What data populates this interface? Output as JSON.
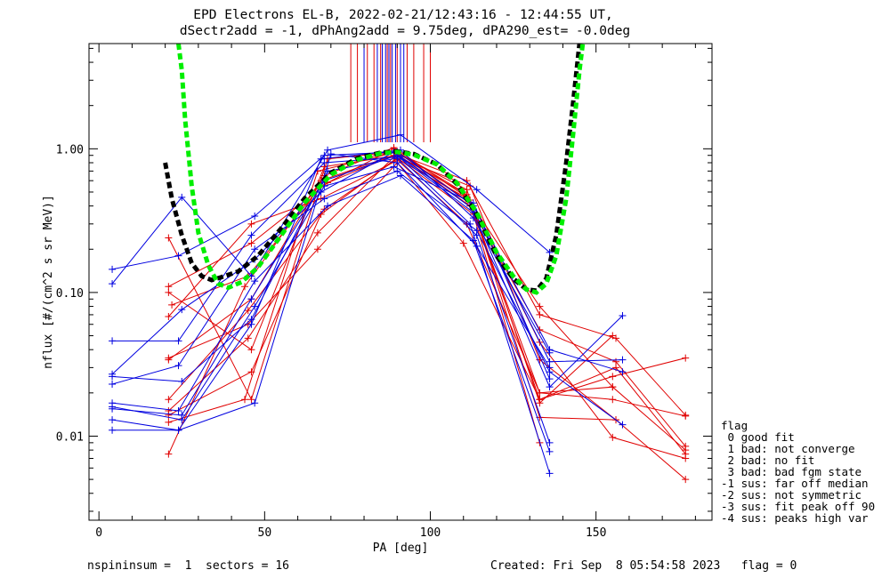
{
  "title_line1": "EPD Electrons EL-B, 2022-02-21/12:43:16 - 12:44:55 UT,",
  "title_line2": "dSectr2add = -1, dPhAng2add = 9.75deg, dPA290_est=  -0.0deg",
  "footer_left": "nspininsum =  1  sectors = 16",
  "footer_right": "Created: Fri Sep  8 05:54:58 2023   flag = 0",
  "legend": {
    "title": "flag",
    "items": [
      " 0 good fit",
      " 1 bad: not converge",
      " 2 bad: no fit",
      " 3 bad: bad fgm state",
      "-1 sus: far off median",
      "-2 sus: not symmetric",
      "-3 sus: fit peak off 90",
      "-4 sus: peaks high var"
    ]
  },
  "colors": {
    "red": "#e00000",
    "blue": "#0000e0",
    "green": "#00ee00",
    "black": "#000000"
  },
  "chart_data": {
    "type": "line",
    "xlabel": "PA [deg]",
    "ylabel": "nflux [#/(cm^2 s sr MeV)]",
    "xlim": [
      -3,
      185
    ],
    "ylim": [
      0.0026,
      5.4
    ],
    "yscale": "log",
    "xticks": [
      0,
      50,
      100,
      150
    ],
    "yticks": [
      {
        "v": 0.01,
        "label": "0.01"
      },
      {
        "v": 0.1,
        "label": "0.10"
      },
      {
        "v": 1.0,
        "label": "1.00"
      }
    ],
    "vlines": {
      "red": [
        76,
        78,
        81,
        83,
        85,
        87,
        88,
        90,
        93,
        95,
        98,
        100
      ],
      "blue": [
        80,
        84,
        85.5,
        86.5,
        87.5,
        88.5,
        89.5,
        91,
        92
      ]
    },
    "series_red": [
      [
        [
          21,
          0.24
        ],
        [
          46,
          0.018
        ],
        [
          69,
          0.85
        ],
        [
          89,
          0.95
        ],
        [
          111,
          0.52
        ],
        [
          133,
          0.017
        ],
        [
          155,
          0.05
        ]
      ],
      [
        [
          21,
          0.1
        ],
        [
          46,
          0.04
        ],
        [
          68,
          0.75
        ],
        [
          90,
          0.9
        ],
        [
          111,
          0.48
        ],
        [
          133,
          0.018
        ],
        [
          156,
          0.03
        ],
        [
          177,
          0.0075
        ]
      ],
      [
        [
          22,
          0.082
        ],
        [
          45,
          0.13
        ],
        [
          67,
          0.55
        ],
        [
          89,
          1.0
        ],
        [
          112,
          0.42
        ],
        [
          133,
          0.02
        ],
        [
          155,
          0.022
        ],
        [
          177,
          0.008
        ]
      ],
      [
        [
          21,
          0.068
        ],
        [
          46,
          0.3
        ],
        [
          67,
          0.45
        ],
        [
          91,
          0.85
        ],
        [
          112,
          0.55
        ],
        [
          133,
          0.034
        ],
        [
          156,
          0.013
        ],
        [
          177,
          0.005
        ]
      ],
      [
        [
          21,
          0.035
        ],
        [
          45,
          0.06
        ],
        [
          66,
          0.2
        ],
        [
          90,
          0.8
        ],
        [
          110,
          0.22
        ],
        [
          133,
          0.018
        ],
        [
          155,
          0.026
        ],
        [
          177,
          0.035
        ]
      ],
      [
        [
          21,
          0.034
        ],
        [
          46,
          0.09
        ],
        [
          68,
          0.65
        ],
        [
          89,
          1.02
        ],
        [
          111,
          0.46
        ],
        [
          133,
          0.045
        ],
        [
          155,
          0.0098
        ],
        [
          177,
          0.007
        ]
      ],
      [
        [
          21,
          0.0075
        ],
        [
          44,
          0.11
        ],
        [
          67,
          0.6
        ],
        [
          90,
          0.92
        ],
        [
          112,
          0.4
        ],
        [
          133,
          0.055
        ],
        [
          156,
          0.033
        ],
        [
          177,
          0.0085
        ]
      ],
      [
        [
          21,
          0.015
        ],
        [
          45,
          0.048
        ],
        [
          66,
          0.26
        ],
        [
          89,
          0.88
        ],
        [
          111,
          0.3
        ],
        [
          133,
          0.02
        ],
        [
          155,
          0.018
        ],
        [
          177,
          0.0138
        ]
      ],
      [
        [
          21,
          0.014
        ],
        [
          46,
          0.028
        ],
        [
          67,
          0.35
        ],
        [
          91,
          0.9
        ],
        [
          111,
          0.6
        ],
        [
          133,
          0.07
        ],
        [
          156,
          0.048
        ],
        [
          177,
          0.014
        ]
      ],
      [
        [
          21,
          0.0125
        ],
        [
          44,
          0.018
        ],
        [
          66,
          0.7
        ],
        [
          90,
          0.95
        ],
        [
          110,
          0.5
        ],
        [
          133,
          0.08
        ],
        [
          155,
          0.022
        ]
      ],
      [
        [
          21,
          0.018
        ],
        [
          45,
          0.075
        ],
        [
          68,
          0.38
        ],
        [
          90,
          0.85
        ],
        [
          112,
          0.44
        ],
        [
          133,
          0.0135
        ],
        [
          156,
          0.013
        ]
      ],
      [
        [
          21,
          0.11
        ],
        [
          46,
          0.22
        ],
        [
          69,
          0.58
        ],
        [
          89,
          0.9
        ],
        [
          113,
          0.35
        ],
        [
          133,
          0.009
        ]
      ]
    ],
    "series_blue": [
      [
        [
          4,
          0.115
        ],
        [
          25,
          0.46
        ],
        [
          46,
          0.13
        ],
        [
          69,
          0.98
        ],
        [
          91,
          1.25
        ],
        [
          114,
          0.52
        ],
        [
          136,
          0.19
        ]
      ],
      [
        [
          4,
          0.145
        ],
        [
          24,
          0.18
        ],
        [
          47,
          0.34
        ],
        [
          68,
          0.9
        ],
        [
          90,
          0.95
        ],
        [
          113,
          0.4
        ],
        [
          136,
          0.04
        ],
        [
          158,
          0.028
        ]
      ],
      [
        [
          4,
          0.046
        ],
        [
          24,
          0.046
        ],
        [
          46,
          0.25
        ],
        [
          68,
          0.8
        ],
        [
          91,
          0.88
        ],
        [
          113,
          0.38
        ],
        [
          136,
          0.033
        ],
        [
          158,
          0.034
        ]
      ],
      [
        [
          4,
          0.027
        ],
        [
          25,
          0.076
        ],
        [
          47,
          0.17
        ],
        [
          67,
          0.5
        ],
        [
          89,
          0.95
        ],
        [
          112,
          0.3
        ],
        [
          136,
          0.0055
        ]
      ],
      [
        [
          4,
          0.023
        ],
        [
          24,
          0.031
        ],
        [
          47,
          0.2
        ],
        [
          68,
          0.45
        ],
        [
          90,
          0.7
        ],
        [
          114,
          0.27
        ],
        [
          136,
          0.028
        ],
        [
          158,
          0.012
        ]
      ],
      [
        [
          4,
          0.017
        ],
        [
          24,
          0.015
        ],
        [
          47,
          0.12
        ],
        [
          69,
          0.4
        ],
        [
          91,
          0.65
        ],
        [
          113,
          0.23
        ],
        [
          136,
          0.0078
        ]
      ],
      [
        [
          4,
          0.0155
        ],
        [
          25,
          0.014
        ],
        [
          46,
          0.09
        ],
        [
          68,
          0.6
        ],
        [
          90,
          0.9
        ],
        [
          113,
          0.36
        ],
        [
          136,
          0.022
        ],
        [
          158,
          0.069
        ]
      ],
      [
        [
          4,
          0.013
        ],
        [
          24,
          0.011
        ],
        [
          47,
          0.017
        ],
        [
          70,
          0.92
        ],
        [
          90,
          0.8
        ],
        [
          114,
          0.21
        ],
        [
          136,
          0.03
        ]
      ],
      [
        [
          4,
          0.011
        ],
        [
          24,
          0.011
        ],
        [
          46,
          0.06
        ],
        [
          67,
          0.85
        ],
        [
          91,
          0.98
        ],
        [
          113,
          0.33
        ],
        [
          136,
          0.038
        ]
      ],
      [
        [
          4,
          0.016
        ],
        [
          25,
          0.013
        ],
        [
          47,
          0.08
        ],
        [
          68,
          0.55
        ],
        [
          89,
          0.75
        ],
        [
          113,
          0.42
        ],
        [
          136,
          0.025
        ]
      ],
      [
        [
          4,
          0.026
        ],
        [
          25,
          0.024
        ],
        [
          46,
          0.065
        ],
        [
          69,
          0.7
        ],
        [
          90,
          0.86
        ],
        [
          114,
          0.25
        ],
        [
          136,
          0.009
        ]
      ]
    ],
    "curve_green": [
      [
        24,
        5.4
      ],
      [
        25,
        3.5
      ],
      [
        26,
        1.6
      ],
      [
        28,
        0.55
      ],
      [
        30,
        0.26
      ],
      [
        33,
        0.155
      ],
      [
        36,
        0.115
      ],
      [
        39,
        0.108
      ],
      [
        43,
        0.118
      ],
      [
        48,
        0.15
      ],
      [
        55,
        0.25
      ],
      [
        62,
        0.42
      ],
      [
        70,
        0.66
      ],
      [
        78,
        0.84
      ],
      [
        85,
        0.93
      ],
      [
        90,
        0.95
      ],
      [
        95,
        0.91
      ],
      [
        102,
        0.78
      ],
      [
        108,
        0.58
      ],
      [
        114,
        0.36
      ],
      [
        120,
        0.19
      ],
      [
        125,
        0.13
      ],
      [
        129,
        0.105
      ],
      [
        132,
        0.1
      ],
      [
        135,
        0.115
      ],
      [
        138,
        0.18
      ],
      [
        141,
        0.45
      ],
      [
        143,
        1.2
      ],
      [
        145,
        3.5
      ],
      [
        146,
        5.4
      ]
    ],
    "curve_black": [
      [
        20,
        0.8
      ],
      [
        22,
        0.45
      ],
      [
        25,
        0.25
      ],
      [
        28,
        0.16
      ],
      [
        31,
        0.13
      ],
      [
        34,
        0.122
      ],
      [
        37,
        0.128
      ],
      [
        42,
        0.14
      ],
      [
        48,
        0.18
      ],
      [
        55,
        0.28
      ],
      [
        62,
        0.45
      ],
      [
        70,
        0.68
      ],
      [
        78,
        0.86
      ],
      [
        85,
        0.94
      ],
      [
        90,
        0.96
      ],
      [
        95,
        0.92
      ],
      [
        102,
        0.78
      ],
      [
        108,
        0.57
      ],
      [
        114,
        0.35
      ],
      [
        120,
        0.18
      ],
      [
        125,
        0.125
      ],
      [
        129,
        0.105
      ],
      [
        132,
        0.103
      ],
      [
        135,
        0.125
      ],
      [
        138,
        0.25
      ],
      [
        141,
        0.8
      ],
      [
        143,
        2.0
      ],
      [
        145,
        5.4
      ]
    ]
  }
}
